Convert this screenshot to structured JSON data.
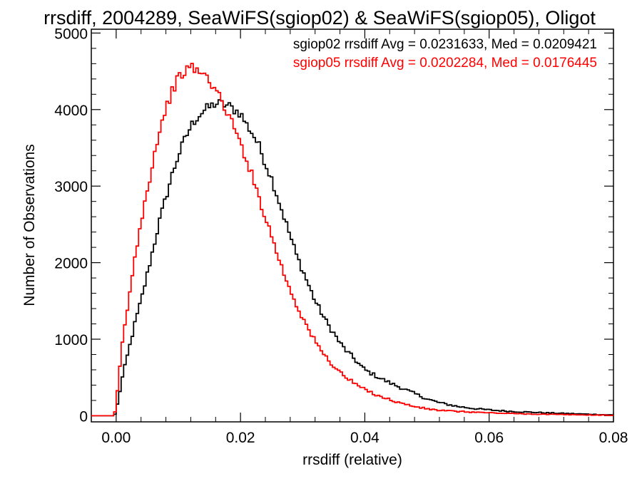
{
  "chart_data": {
    "type": "line",
    "title": "rrsdiff, 2004289, SeaWiFS(sgiop02) & SeaWiFS(sgiop05), Oligot",
    "xlabel": "rrsdiff (relative)",
    "ylabel": "Number of Observations",
    "xlim": [
      -0.004,
      0.08
    ],
    "ylim": [
      -80,
      5050
    ],
    "x_ticks": [
      0.0,
      0.02,
      0.04,
      0.06,
      0.08
    ],
    "x_tick_labels": [
      "0.00",
      "0.02",
      "0.04",
      "0.06",
      "0.08"
    ],
    "y_ticks": [
      0,
      1000,
      2000,
      3000,
      4000,
      5000
    ],
    "y_tick_labels": [
      "0",
      "1000",
      "2000",
      "3000",
      "4000",
      "5000"
    ],
    "grid": false,
    "legend_position": "top-right",
    "series": [
      {
        "name": "sgiop02",
        "color": "#000000",
        "annotation": "sgiop02 rrsdiff Avg = 0.0231633, Med = 0.0209421",
        "x": [
          -0.004,
          -0.0003,
          0.0,
          0.001,
          0.002,
          0.003,
          0.004,
          0.005,
          0.006,
          0.007,
          0.008,
          0.009,
          0.01,
          0.011,
          0.012,
          0.013,
          0.014,
          0.015,
          0.016,
          0.017,
          0.018,
          0.019,
          0.02,
          0.021,
          0.022,
          0.023,
          0.024,
          0.025,
          0.026,
          0.027,
          0.028,
          0.029,
          0.03,
          0.031,
          0.032,
          0.033,
          0.034,
          0.035,
          0.036,
          0.037,
          0.038,
          0.039,
          0.04,
          0.042,
          0.044,
          0.046,
          0.048,
          0.05,
          0.052,
          0.055,
          0.058,
          0.061,
          0.064,
          0.067,
          0.07,
          0.073,
          0.076,
          0.078,
          0.08
        ],
        "values": [
          0,
          0,
          60,
          500,
          850,
          1200,
          1500,
          1850,
          2200,
          2550,
          2850,
          3150,
          3400,
          3600,
          3780,
          3900,
          3980,
          4030,
          4080,
          4070,
          4050,
          4000,
          3950,
          3800,
          3680,
          3520,
          3300,
          3100,
          2850,
          2600,
          2350,
          2100,
          1900,
          1700,
          1500,
          1350,
          1200,
          1080,
          950,
          850,
          770,
          680,
          600,
          510,
          430,
          360,
          290,
          220,
          170,
          120,
          90,
          70,
          55,
          45,
          35,
          28,
          20,
          15,
          10
        ]
      },
      {
        "name": "sgiop05",
        "color": "#ff0000",
        "annotation": "sgiop05 rrsdiff Avg = 0.0202284, Med = 0.0176445",
        "x": [
          -0.004,
          -0.0003,
          0.0,
          0.001,
          0.002,
          0.003,
          0.004,
          0.005,
          0.006,
          0.007,
          0.008,
          0.009,
          0.01,
          0.011,
          0.012,
          0.013,
          0.014,
          0.015,
          0.016,
          0.017,
          0.018,
          0.019,
          0.02,
          0.021,
          0.022,
          0.023,
          0.024,
          0.025,
          0.026,
          0.027,
          0.028,
          0.029,
          0.03,
          0.031,
          0.032,
          0.033,
          0.034,
          0.035,
          0.036,
          0.037,
          0.038,
          0.039,
          0.04,
          0.042,
          0.044,
          0.046,
          0.048,
          0.05,
          0.052,
          0.055,
          0.058,
          0.061,
          0.064,
          0.067,
          0.07,
          0.073,
          0.076,
          0.078,
          0.08
        ],
        "values": [
          0,
          0,
          150,
          950,
          1500,
          2050,
          2550,
          2950,
          3350,
          3750,
          4000,
          4250,
          4400,
          4500,
          4550,
          4520,
          4450,
          4400,
          4250,
          4100,
          3950,
          3750,
          3550,
          3350,
          3100,
          2850,
          2600,
          2350,
          2100,
          1850,
          1650,
          1450,
          1280,
          1120,
          970,
          850,
          740,
          650,
          570,
          500,
          440,
          390,
          340,
          270,
          210,
          160,
          120,
          90,
          70,
          55,
          45,
          35,
          28,
          22,
          17,
          14,
          10,
          8,
          6
        ]
      }
    ]
  }
}
